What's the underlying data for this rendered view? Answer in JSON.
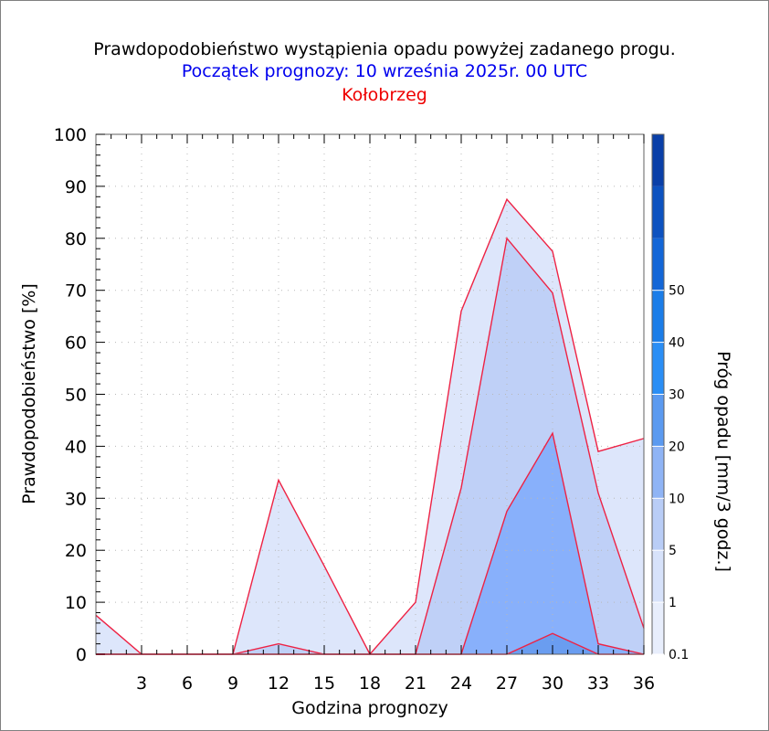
{
  "titles": {
    "main": "Prawdopodobieństwo wystąpienia opadu powyżej zadanego progu.",
    "forecast_start": "Początek prognozy: 10 września 2025r. 00 UTC",
    "location": "Kołobrzeg"
  },
  "chart_data": {
    "type": "area",
    "title": "Prawdopodobieństwo wystąpienia opadu powyżej zadanego progu.",
    "xlabel": "Godzina prognozy",
    "ylabel": "Prawdopodobieństwo [%]",
    "xlim": [
      0,
      36
    ],
    "ylim": [
      0,
      100
    ],
    "x_ticks": [
      3,
      6,
      9,
      12,
      15,
      18,
      21,
      24,
      27,
      30,
      33,
      36
    ],
    "y_ticks": [
      0,
      10,
      20,
      30,
      40,
      50,
      60,
      70,
      80,
      90,
      100
    ],
    "grid": true,
    "x": [
      0,
      3,
      6,
      9,
      12,
      15,
      18,
      21,
      24,
      27,
      30,
      33,
      36
    ],
    "series": [
      {
        "name": "0.1",
        "color": "#dde6fb",
        "values": [
          7.5,
          0,
          0,
          0,
          33.5,
          17,
          0,
          10,
          66,
          87.5,
          77.5,
          39,
          41.5
        ]
      },
      {
        "name": "1",
        "color": "#bfd0f7",
        "values": [
          0,
          0,
          0,
          0,
          2,
          0,
          0,
          0,
          32,
          80,
          69.5,
          31,
          5
        ]
      },
      {
        "name": "5",
        "color": "#88b0fb",
        "values": [
          0,
          0,
          0,
          0,
          0,
          0,
          0,
          0,
          0,
          27.5,
          42.5,
          2,
          0
        ]
      },
      {
        "name": "10",
        "color": "#6a9df0",
        "values": [
          0,
          0,
          0,
          0,
          0,
          0,
          0,
          0,
          0,
          0,
          4,
          0,
          0
        ]
      }
    ],
    "line_color": "#ee2244",
    "colorbar": {
      "label": "Próg opadu [mm/3 godz.]",
      "tick_labels": [
        "0.1",
        "1",
        "5",
        "10",
        "20",
        "30",
        "40",
        "50"
      ],
      "colors": [
        "#e8eefc",
        "#d7e2fa",
        "#b9cdf6",
        "#8fb4f5",
        "#5b9af0",
        "#2a8ef5",
        "#1b7de8",
        "#1366d7",
        "#0d52c0",
        "#0a3fa8"
      ]
    }
  }
}
